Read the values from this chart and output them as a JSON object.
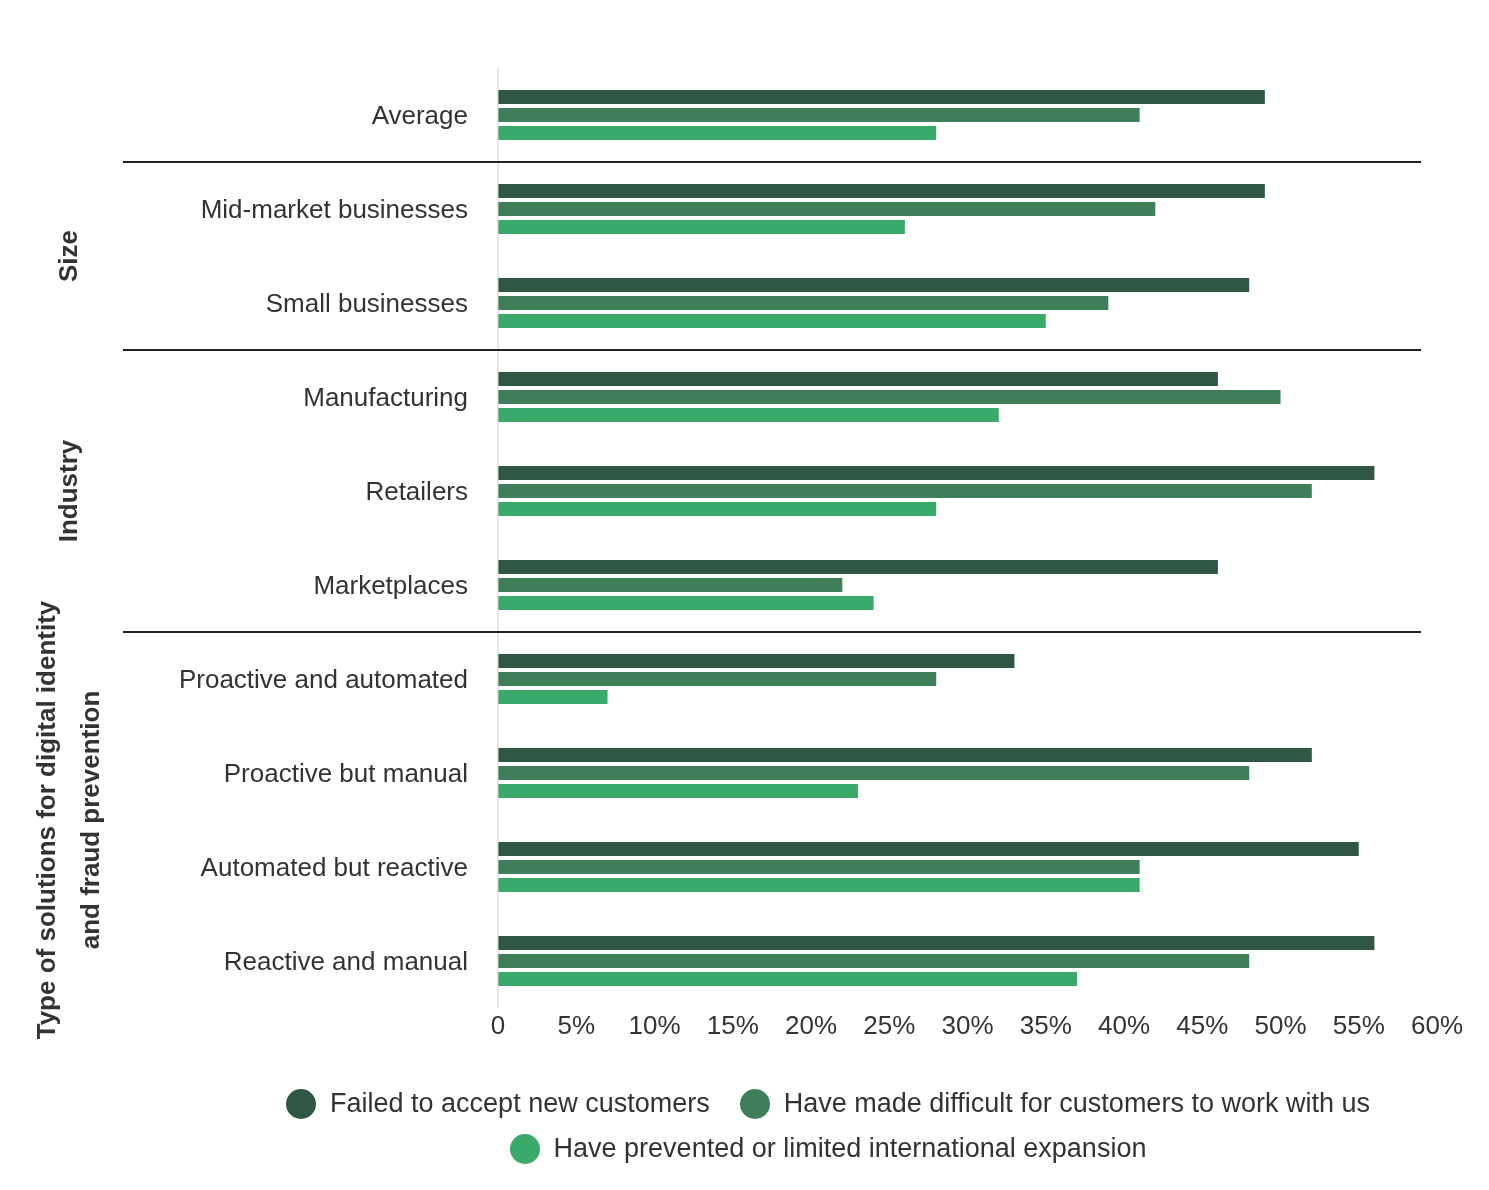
{
  "chart_data": {
    "type": "bar",
    "orientation": "horizontal",
    "categories": [
      "Average",
      "Mid-market businesses",
      "Small businesses",
      "Manufacturing",
      "Retailers",
      "Marketplaces",
      "Proactive and automated",
      "Proactive but manual",
      "Automated but reactive",
      "Reactive and manual"
    ],
    "series": [
      {
        "name": "Failed to accept new customers",
        "color": "#2f5744",
        "values": [
          49,
          49,
          48,
          46,
          56,
          46,
          33,
          52,
          55,
          56
        ]
      },
      {
        "name": "Have made difficult for customers to work with us",
        "color": "#3e7f5a",
        "values": [
          41,
          42,
          39,
          50,
          52,
          22,
          28,
          48,
          41,
          48
        ]
      },
      {
        "name": "Have prevented or limited international expansion",
        "color": "#3aaa6a",
        "values": [
          28,
          26,
          35,
          32,
          28,
          24,
          7,
          23,
          41,
          37
        ]
      }
    ],
    "xlim": [
      0,
      60
    ],
    "xticks": [
      0,
      {
        "value": 5,
        "label": "5%"
      },
      {
        "value": 10,
        "label": "10%"
      },
      {
        "value": 15,
        "label": "15%"
      },
      {
        "value": 20,
        "label": "20%"
      },
      {
        "value": 25,
        "label": "25%"
      },
      {
        "value": 30,
        "label": "30%"
      },
      {
        "value": 35,
        "label": "35%"
      },
      {
        "value": 40,
        "label": "40%"
      },
      {
        "value": 45,
        "label": "45%"
      },
      {
        "value": 50,
        "label": "50%"
      },
      {
        "value": 55,
        "label": "55%"
      },
      {
        "value": 60,
        "label": "60%"
      }
    ],
    "annotations": [
      "Size",
      "Industry",
      "Type of solutions for digital identity and fraud prevention"
    ],
    "legend": "bottom"
  }
}
